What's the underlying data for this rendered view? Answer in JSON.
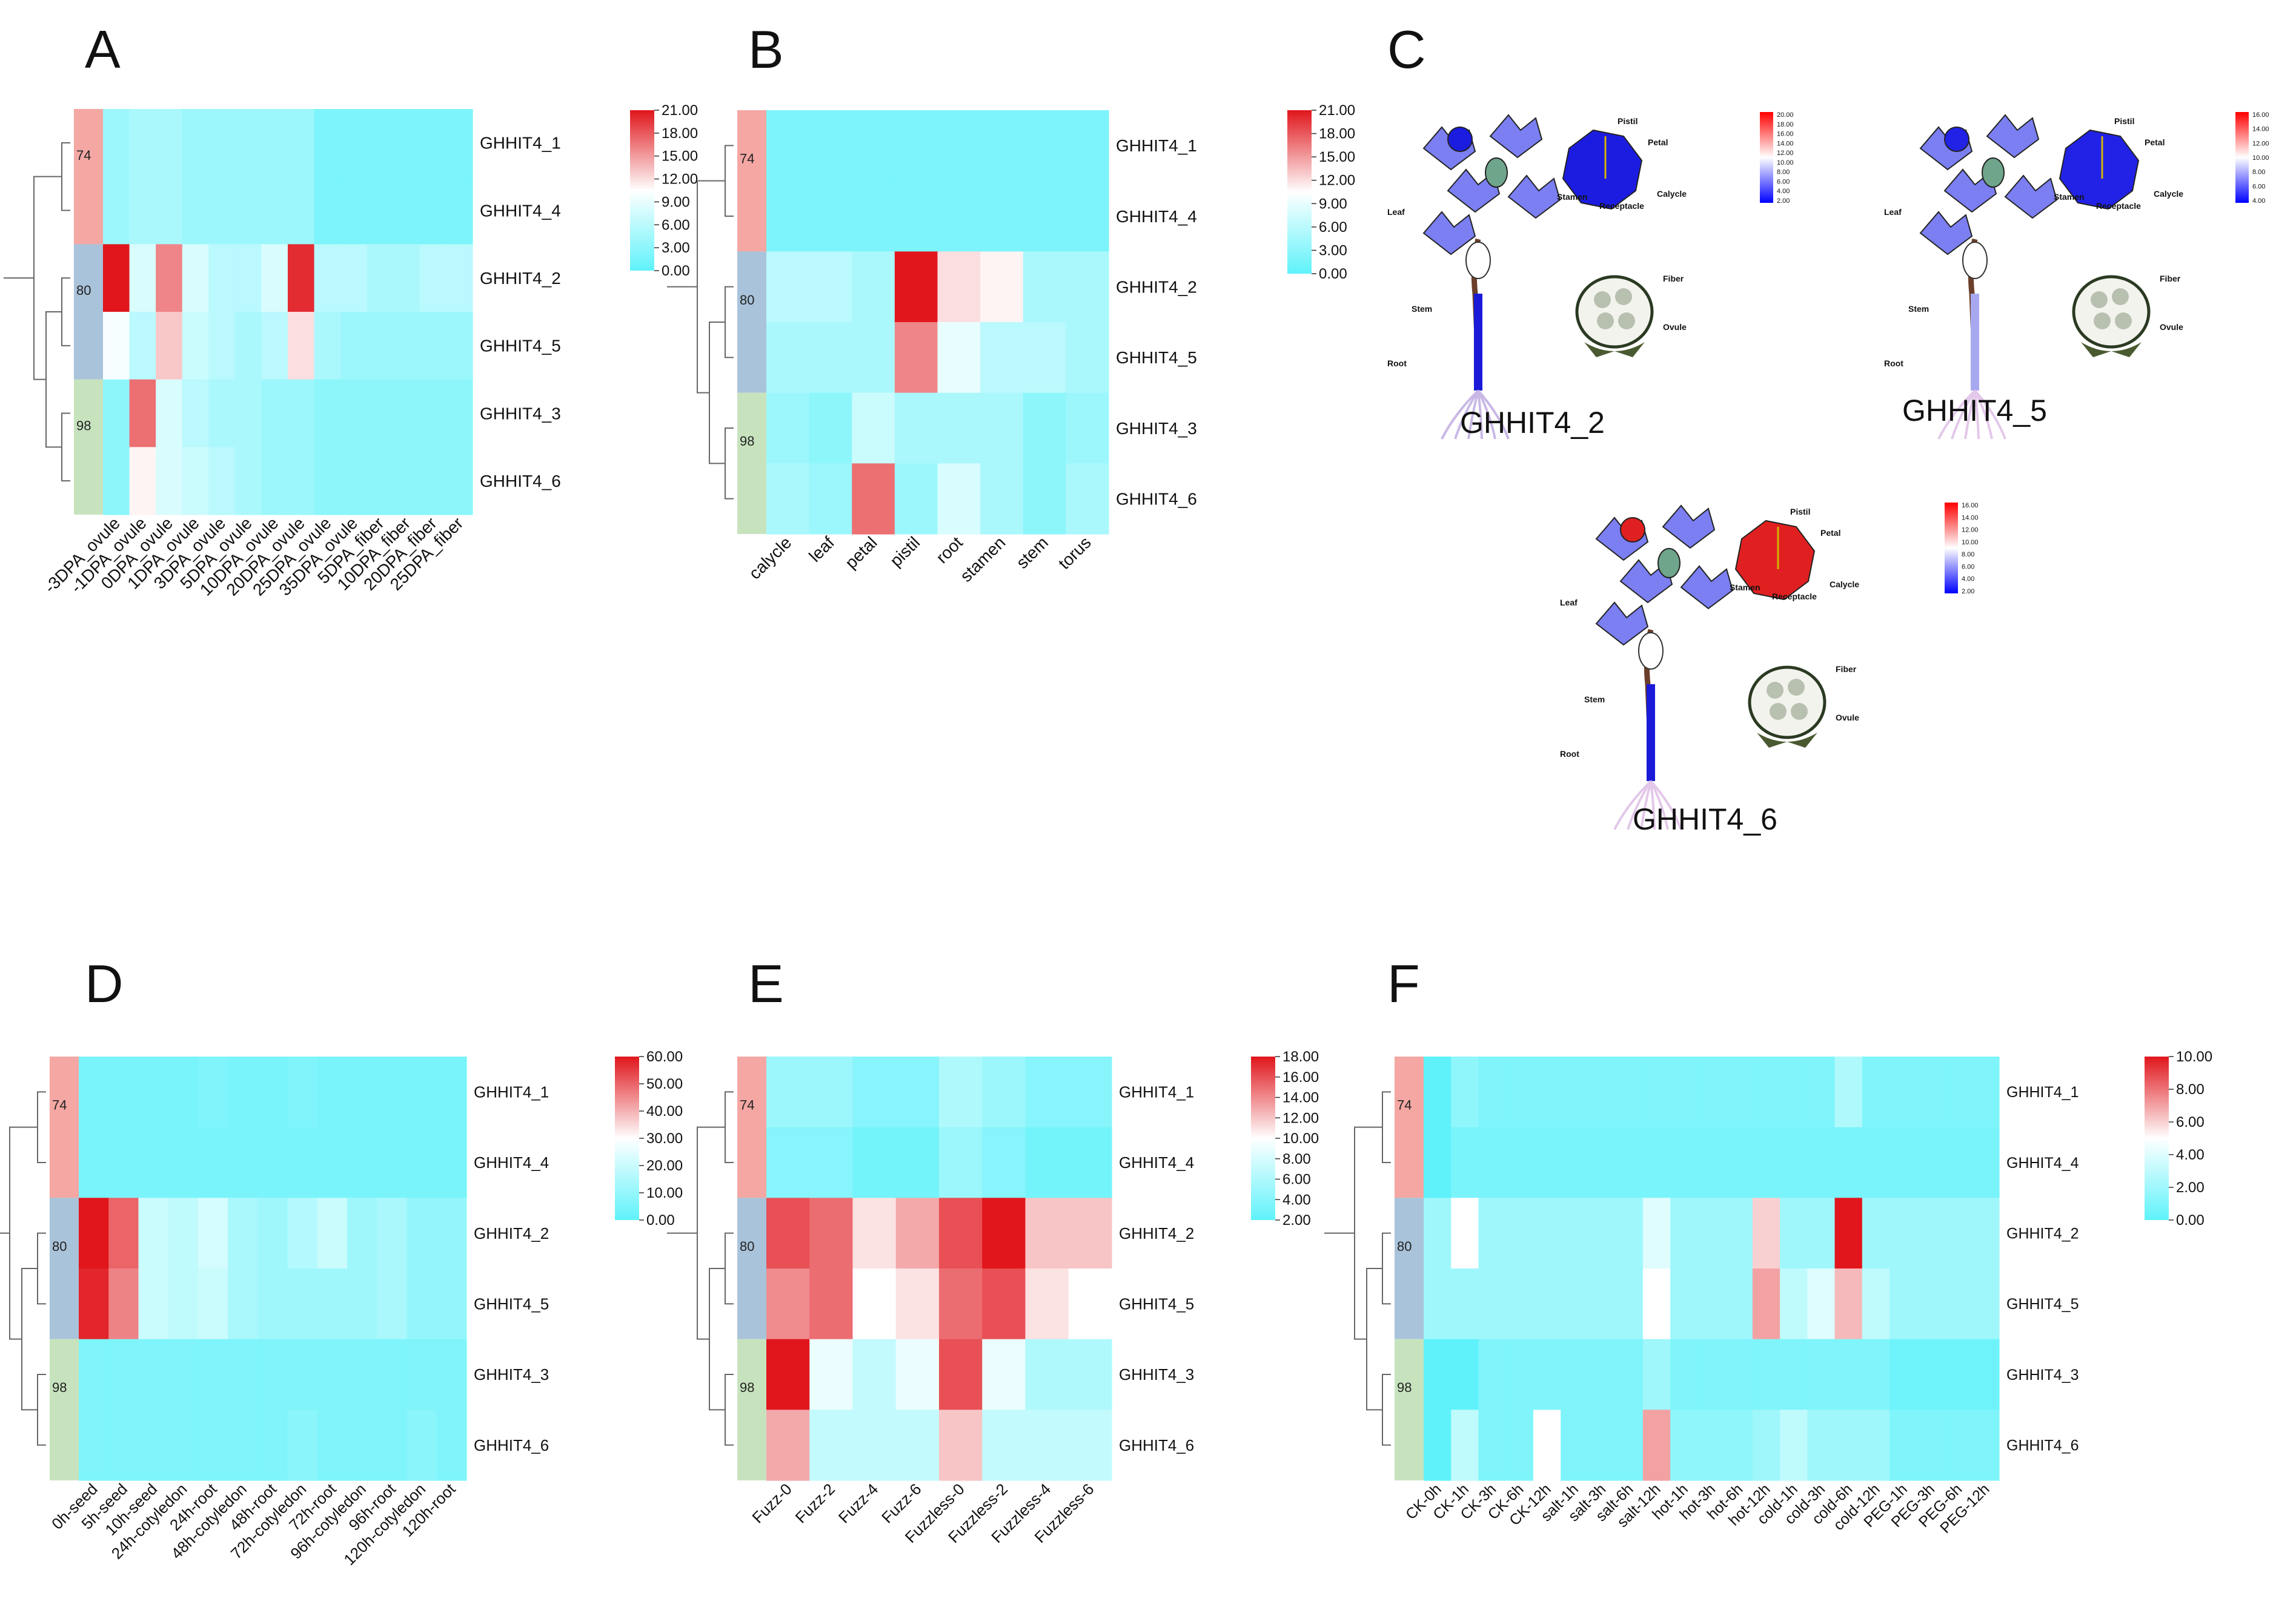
{
  "figure": {
    "colors": {
      "low": "#5ff2fa",
      "mid": "#ffffff",
      "high": "#e0161c",
      "tree": "#666666",
      "clusters": [
        "#f4a7a3",
        "#a9c3da",
        "#c7e3be"
      ]
    },
    "clusters_bootstrap": [
      "74",
      "80",
      "98"
    ]
  },
  "panels": {
    "A": "A",
    "B": "B",
    "C": "C",
    "D": "D",
    "E": "E",
    "F": "F"
  },
  "chart_data": [
    {
      "id": "A",
      "type": "heatmap",
      "rows": [
        "GHHIT4_1",
        "GHHIT4_4",
        "GHHIT4_2",
        "GHHIT4_5",
        "GHHIT4_3",
        "GHHIT4_6"
      ],
      "columns": [
        "-3DPA_ovule",
        "-1DPA_ovule",
        "0DPA_ovule",
        "1DPA_ovule",
        "3DPA_ovule",
        "5DPA_ovule",
        "10DPA_ovule",
        "20DPA_ovule",
        "25DPA_ovule",
        "35DPA_ovule",
        "5DPA_fiber",
        "10DPA_fiber",
        "20DPA_fiber",
        "25DPA_fiber"
      ],
      "values": [
        [
          4,
          5,
          5,
          4,
          4,
          4,
          4,
          4,
          2,
          2,
          2,
          2,
          2,
          2
        ],
        [
          4,
          5,
          5,
          4,
          4,
          4,
          4,
          4,
          2,
          2,
          2,
          2,
          2,
          2
        ],
        [
          21,
          8,
          16,
          8,
          6,
          6,
          8,
          20,
          6,
          6,
          5,
          5,
          6,
          6
        ],
        [
          10,
          6,
          13,
          7,
          6,
          5,
          6,
          12,
          5,
          4,
          4,
          4,
          4,
          4
        ],
        [
          3,
          17,
          8,
          6,
          5,
          5,
          4,
          4,
          3,
          3,
          3,
          3,
          3,
          3
        ],
        [
          3,
          11,
          8,
          7,
          6,
          5,
          4,
          4,
          3,
          3,
          3,
          3,
          3,
          3
        ]
      ],
      "vmin": 0,
      "vmax": 21,
      "legend_ticks": [
        "21.00",
        "18.00",
        "15.00",
        "12.00",
        "9.00",
        "6.00",
        "3.00",
        "0.00"
      ]
    },
    {
      "id": "B",
      "type": "heatmap",
      "rows": [
        "GHHIT4_1",
        "GHHIT4_4",
        "GHHIT4_2",
        "GHHIT4_5",
        "GHHIT4_3",
        "GHHIT4_6"
      ],
      "columns": [
        "calycle",
        "leaf",
        "petal",
        "pistil",
        "root",
        "stamen",
        "stem",
        "torus"
      ],
      "values": [
        [
          2,
          2,
          2,
          2,
          2,
          2,
          2,
          2
        ],
        [
          2,
          2,
          2,
          2,
          2,
          2,
          2,
          2
        ],
        [
          6,
          6,
          5,
          21,
          12,
          11,
          5,
          5
        ],
        [
          5,
          5,
          5,
          16,
          9,
          6,
          6,
          5
        ],
        [
          4,
          3,
          7,
          5,
          5,
          5,
          3,
          4
        ],
        [
          5,
          4,
          17,
          4,
          8,
          5,
          3,
          5
        ]
      ],
      "vmin": 0,
      "vmax": 21,
      "legend_ticks": [
        "21.00",
        "18.00",
        "15.00",
        "12.00",
        "9.00",
        "6.00",
        "3.00",
        "0.00"
      ]
    },
    {
      "id": "D",
      "type": "heatmap",
      "rows": [
        "GHHIT4_1",
        "GHHIT4_4",
        "GHHIT4_2",
        "GHHIT4_5",
        "GHHIT4_3",
        "GHHIT4_6"
      ],
      "columns": [
        "0h-seed",
        "5h-seed",
        "10h-seed",
        "24h-cotyledon",
        "24h-root",
        "48h-cotyledon",
        "48h-root",
        "72h-cotyledon",
        "72h-root",
        "96h-cotyledon",
        "96h-root",
        "120h-cotyledon",
        "120h-root"
      ],
      "values": [
        [
          5,
          5,
          5,
          5,
          6,
          5,
          5,
          6,
          5,
          5,
          5,
          5,
          5
        ],
        [
          5,
          5,
          5,
          5,
          5,
          5,
          5,
          5,
          5,
          5,
          5,
          5,
          5
        ],
        [
          60,
          50,
          20,
          18,
          22,
          14,
          12,
          16,
          20,
          12,
          14,
          10,
          10
        ],
        [
          58,
          46,
          20,
          18,
          20,
          14,
          12,
          12,
          12,
          12,
          14,
          10,
          10
        ],
        [
          6,
          6,
          6,
          6,
          6,
          6,
          6,
          6,
          6,
          6,
          6,
          6,
          6
        ],
        [
          6,
          6,
          6,
          6,
          6,
          6,
          6,
          8,
          6,
          6,
          6,
          8,
          6
        ]
      ],
      "vmin": 0,
      "vmax": 60,
      "legend_ticks": [
        "60.00",
        "50.00",
        "40.00",
        "30.00",
        "20.00",
        "10.00",
        "0.00"
      ]
    },
    {
      "id": "E",
      "type": "heatmap",
      "rows": [
        "GHHIT4_1",
        "GHHIT4_4",
        "GHHIT4_2",
        "GHHIT4_5",
        "GHHIT4_3",
        "GHHIT4_6"
      ],
      "columns": [
        "Fuzz-0",
        "Fuzz-2",
        "Fuzz-4",
        "Fuzz-6",
        "Fuzzless-0",
        "Fuzzless-2",
        "Fuzzless-4",
        "Fuzzless-6"
      ],
      "values": [
        [
          5,
          5,
          4,
          4,
          6,
          5,
          4,
          4
        ],
        [
          4,
          4,
          3,
          3,
          5,
          4,
          3,
          3
        ],
        [
          16,
          15,
          11,
          13,
          16,
          18,
          12,
          12
        ],
        [
          14,
          15,
          10,
          11,
          15,
          16,
          11,
          10
        ],
        [
          18,
          9,
          7,
          9,
          16,
          9,
          6,
          6
        ],
        [
          13,
          7,
          7,
          7,
          12,
          7,
          7,
          7
        ]
      ],
      "vmin": 2,
      "vmax": 18,
      "legend_ticks": [
        "18.00",
        "16.00",
        "14.00",
        "12.00",
        "10.00",
        "8.00",
        "6.00",
        "4.00",
        "2.00"
      ]
    },
    {
      "id": "F",
      "type": "heatmap",
      "rows": [
        "GHHIT4_1",
        "GHHIT4_4",
        "GHHIT4_2",
        "GHHIT4_5",
        "GHHIT4_3",
        "GHHIT4_6"
      ],
      "columns": [
        "CK-0h",
        "CK-1h",
        "CK-3h",
        "CK-6h",
        "CK-12h",
        "salt-1h",
        "salt-3h",
        "salt-6h",
        "salt-12h",
        "hot-1h",
        "hot-3h",
        "hot-6h",
        "hot-12h",
        "cold-1h",
        "cold-3h",
        "cold-6h",
        "cold-12h",
        "PEG-1h",
        "PEG-3h",
        "PEG-6h",
        "PEG-12h"
      ],
      "values": [
        [
          0,
          1.5,
          1,
          1,
          1,
          1,
          1,
          1,
          1,
          1,
          1,
          1,
          1,
          1,
          1,
          2.5,
          1,
          1,
          1,
          1,
          1
        ],
        [
          0,
          0.8,
          0.8,
          0.8,
          0.8,
          0.8,
          0.8,
          0.8,
          0.8,
          0.8,
          0.8,
          0.8,
          0.8,
          0.8,
          0.8,
          0.8,
          0.8,
          0.8,
          0.8,
          0.8,
          0.8
        ],
        [
          2,
          5,
          2,
          2,
          2,
          2,
          2,
          2,
          4,
          2,
          2,
          2,
          6,
          2,
          2,
          10,
          2,
          2,
          2,
          2,
          2
        ],
        [
          2,
          2,
          2,
          2,
          2,
          2,
          2,
          2,
          5,
          2,
          2,
          2,
          7,
          3,
          4,
          6.5,
          3,
          2,
          2,
          2,
          2
        ],
        [
          0,
          0,
          1,
          1,
          1,
          1,
          1,
          1,
          2,
          1,
          1,
          1,
          1,
          1,
          1,
          1,
          1,
          0.5,
          0.5,
          0.5,
          0.5
        ],
        [
          0,
          3,
          1,
          1,
          5,
          1,
          1,
          1,
          7,
          1.5,
          1.5,
          1.5,
          2,
          3,
          2,
          2,
          2,
          1,
          1,
          1,
          1
        ]
      ],
      "vmin": 0,
      "vmax": 10,
      "legend_ticks": [
        "10.00",
        "8.00",
        "6.00",
        "4.00",
        "2.00",
        "0.00"
      ]
    }
  ],
  "panel_c": {
    "figures": [
      {
        "gene": "GHHIT4_2",
        "legend_ticks": [
          "20.00",
          "18.00",
          "16.00",
          "14.00",
          "12.00",
          "10.00",
          "8.00",
          "6.00",
          "4.00",
          "2.00"
        ]
      },
      {
        "gene": "GHHIT4_5",
        "legend_ticks": [
          "16.00",
          "14.00",
          "12.00",
          "10.00",
          "8.00",
          "6.00",
          "4.00"
        ]
      },
      {
        "gene": "GHHIT4_6",
        "legend_ticks": [
          "16.00",
          "14.00",
          "12.00",
          "10.00",
          "8.00",
          "6.00",
          "4.00",
          "2.00"
        ]
      }
    ],
    "labels": {
      "leaf": "Leaf",
      "stem": "Stem",
      "root": "Root",
      "pistil": "Pistil",
      "petal": "Petal",
      "stamen": "Stamen",
      "calycle": "Calycle",
      "receptacle": "Receptacle",
      "fiber": "Fiber",
      "ovule": "Ovule"
    }
  }
}
